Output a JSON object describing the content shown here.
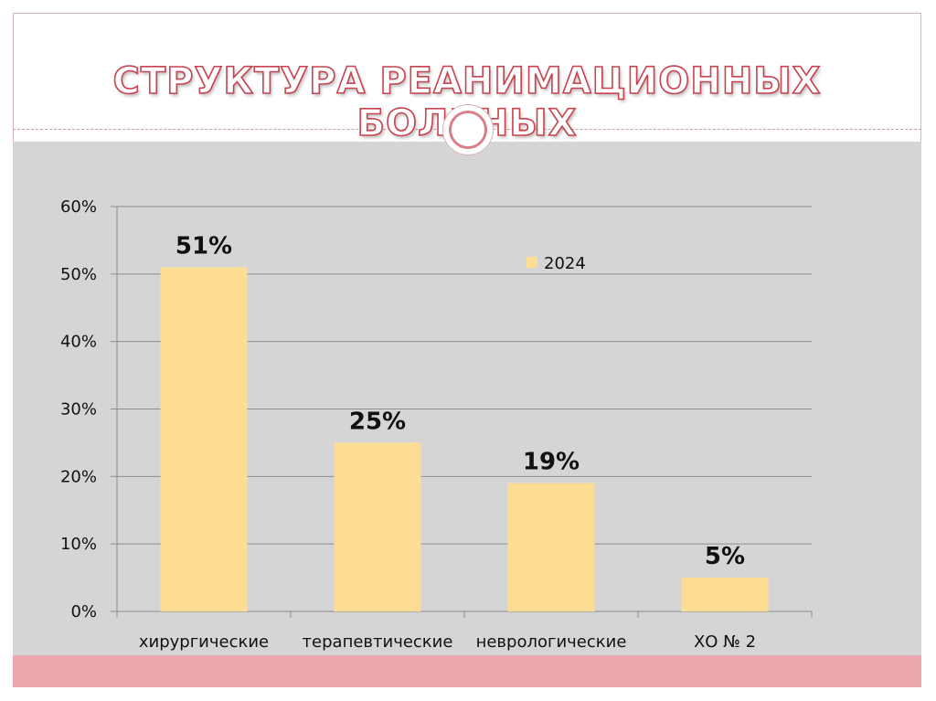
{
  "slide": {
    "title": "СТРУКТУРА РЕАНИМАЦИОННЫХ БОЛЬНЫХ"
  },
  "colors": {
    "bar": "#fddd93",
    "panel": "#d6d5d6",
    "accent": "#c8434f",
    "band": "#eba6ae"
  },
  "chart_data": {
    "type": "bar",
    "categories": [
      "хирургические",
      "терапевтические",
      "неврологические",
      "ХО № 2"
    ],
    "series": [
      {
        "name": "2024",
        "values": [
          51,
          25,
          19,
          5
        ]
      }
    ],
    "data_labels": [
      "51%",
      "25%",
      "19%",
      "5%"
    ],
    "ylim": [
      0,
      60
    ],
    "yticks": [
      0,
      10,
      20,
      30,
      40,
      50,
      60
    ],
    "ytick_labels": [
      "0%",
      "10%",
      "20%",
      "30%",
      "40%",
      "50%",
      "60%"
    ],
    "grid": true,
    "legend": "top-right"
  }
}
